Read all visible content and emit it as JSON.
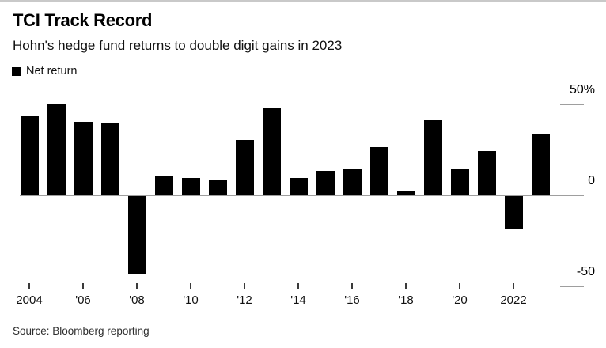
{
  "header": {
    "title": "TCI Track Record",
    "subtitle": "Hohn's hedge fund returns to double digit gains in 2023"
  },
  "legend": {
    "label": "Net return",
    "swatch_color": "#000000"
  },
  "chart_data": {
    "type": "bar",
    "title": "TCI Track Record",
    "subtitle": "Hohn's hedge fund returns to double digit gains in 2023",
    "series_name": "Net return",
    "unit": "%",
    "years": [
      2004,
      2005,
      2006,
      2007,
      2008,
      2009,
      2010,
      2011,
      2012,
      2013,
      2014,
      2015,
      2016,
      2017,
      2018,
      2019,
      2020,
      2021,
      2022,
      2023
    ],
    "values": [
      43,
      50,
      40,
      39,
      -43,
      10,
      9,
      8,
      30,
      48,
      9,
      13,
      14,
      26,
      2,
      41,
      14,
      24,
      -18,
      33
    ],
    "y_ticks": [
      {
        "value": 50,
        "label": "50%"
      },
      {
        "value": 0,
        "label": "0"
      },
      {
        "value": -50,
        "label": "-50"
      }
    ],
    "x_ticks": [
      {
        "year": 2004,
        "label": "2004"
      },
      {
        "year": 2006,
        "label": "'06"
      },
      {
        "year": 2008,
        "label": "'08"
      },
      {
        "year": 2010,
        "label": "'10"
      },
      {
        "year": 2012,
        "label": "'12"
      },
      {
        "year": 2014,
        "label": "'14"
      },
      {
        "year": 2016,
        "label": "'16"
      },
      {
        "year": 2018,
        "label": "'18"
      },
      {
        "year": 2020,
        "label": "'20"
      },
      {
        "year": 2022,
        "label": "2022"
      }
    ],
    "ylim": [
      -50,
      55
    ],
    "bar_color": "#000000",
    "axis_color": "#9e9e9e",
    "grid": "right-edge tick dashes only",
    "legend_position": "top-left"
  },
  "source": {
    "text": "Source: Bloomberg reporting"
  }
}
